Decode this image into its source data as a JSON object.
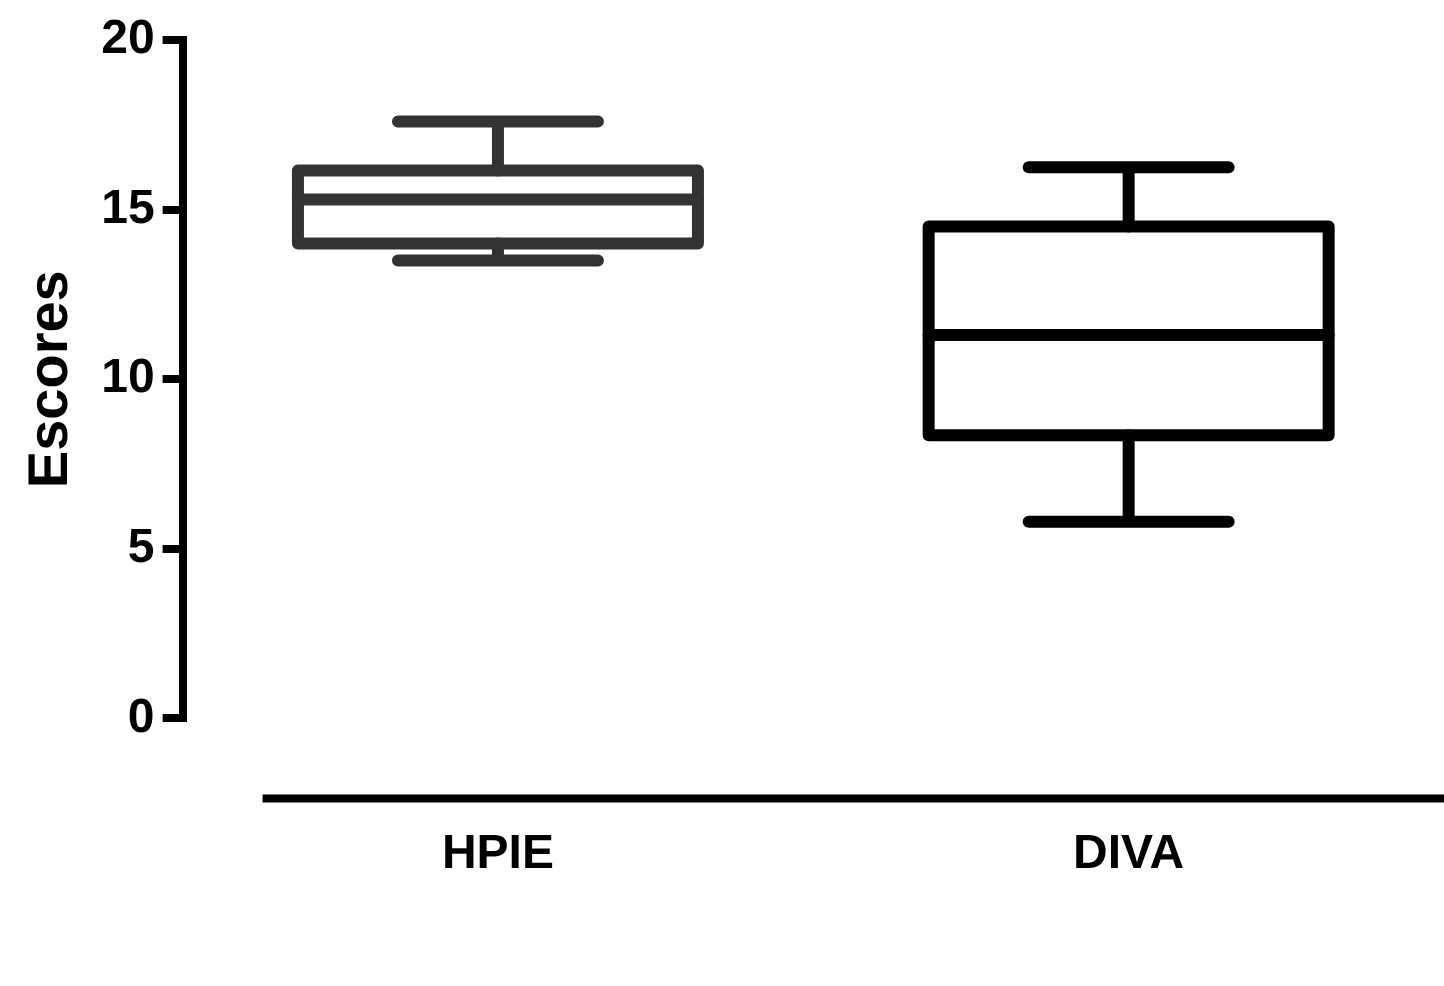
{
  "chart_data": {
    "type": "box",
    "ylabel": "Escores",
    "categories": [
      "HPIE",
      "DIVA"
    ],
    "boxes": [
      {
        "low": 13.5,
        "q1": 14.0,
        "median": 15.3,
        "q3": 16.15,
        "high": 17.6
      },
      {
        "low": 5.8,
        "q1": 8.35,
        "median": 11.3,
        "q3": 14.5,
        "high": 16.25
      }
    ],
    "colors": [
      "#333333",
      "#000000"
    ],
    "ylim": [
      0,
      20
    ],
    "yticks": [
      0,
      5,
      10,
      15,
      20
    ],
    "grid": false,
    "legend": false
  }
}
